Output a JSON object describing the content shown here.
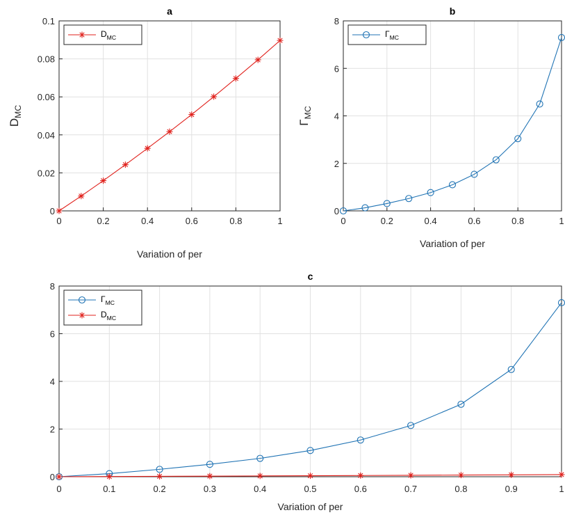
{
  "chart_data": [
    {
      "id": "a",
      "type": "line",
      "title": "a",
      "xlabel": "Variation of per",
      "ylabel": {
        "main": "D",
        "sub": "MC"
      },
      "xlim": [
        0,
        1
      ],
      "ylim": [
        0,
        0.1
      ],
      "xticks": [
        "0",
        "0.2",
        "0.4",
        "0.6",
        "0.8",
        "1"
      ],
      "xtick_values": [
        0,
        0.2,
        0.4,
        0.6,
        0.8,
        1
      ],
      "yticks": [
        "0",
        "0.02",
        "0.04",
        "0.06",
        "0.08",
        "0.1"
      ],
      "ytick_values": [
        0,
        0.02,
        0.04,
        0.06,
        0.08,
        0.1
      ],
      "grid": true,
      "legend": "top-left",
      "x": [
        0,
        0.1,
        0.2,
        0.3,
        0.4,
        0.5,
        0.6,
        0.7,
        0.8,
        0.9,
        1.0
      ],
      "series": [
        {
          "name": {
            "main": "D",
            "sub": "MC"
          },
          "color": "#e0211c",
          "marker": "asterisk",
          "values": [
            0,
            0.0078,
            0.0159,
            0.0243,
            0.0329,
            0.0417,
            0.0507,
            0.0601,
            0.0697,
            0.0795,
            0.0897
          ]
        }
      ]
    },
    {
      "id": "b",
      "type": "line",
      "title": "b",
      "xlabel": "Variation of per",
      "ylabel": {
        "main": "Γ",
        "sub": "MC"
      },
      "xlim": [
        0,
        1
      ],
      "ylim": [
        0,
        8
      ],
      "xticks": [
        "0",
        "0.2",
        "0.4",
        "0.6",
        "0.8",
        "1"
      ],
      "xtick_values": [
        0,
        0.2,
        0.4,
        0.6,
        0.8,
        1
      ],
      "yticks": [
        "0",
        "2",
        "4",
        "6",
        "8"
      ],
      "ytick_values": [
        0,
        2,
        4,
        6,
        8
      ],
      "grid": true,
      "legend": "top-left",
      "x": [
        0,
        0.1,
        0.2,
        0.3,
        0.4,
        0.5,
        0.6,
        0.7,
        0.8,
        0.9,
        1.0
      ],
      "series": [
        {
          "name": {
            "main": "Γ",
            "sub": "MC"
          },
          "color": "#1f73b4",
          "marker": "circle",
          "values": [
            0,
            0.13,
            0.31,
            0.52,
            0.77,
            1.1,
            1.54,
            2.15,
            3.04,
            4.5,
            7.3
          ]
        }
      ]
    },
    {
      "id": "c",
      "type": "line",
      "title": "c",
      "xlabel": "Variation of per",
      "xlim": [
        0,
        1
      ],
      "ylim": [
        0,
        8
      ],
      "xticks": [
        "0",
        "0.1",
        "0.2",
        "0.3",
        "0.4",
        "0.5",
        "0.6",
        "0.7",
        "0.8",
        "0.9",
        "1"
      ],
      "xtick_values": [
        0,
        0.1,
        0.2,
        0.3,
        0.4,
        0.5,
        0.6,
        0.7,
        0.8,
        0.9,
        1
      ],
      "yticks": [
        "0",
        "2",
        "4",
        "6",
        "8"
      ],
      "ytick_values": [
        0,
        2,
        4,
        6,
        8
      ],
      "grid": true,
      "legend": "top-left",
      "x": [
        0,
        0.1,
        0.2,
        0.3,
        0.4,
        0.5,
        0.6,
        0.7,
        0.8,
        0.9,
        1.0
      ],
      "series": [
        {
          "name": {
            "main": "Γ",
            "sub": "MC"
          },
          "color": "#1f73b4",
          "marker": "circle",
          "values": [
            0,
            0.13,
            0.31,
            0.52,
            0.77,
            1.1,
            1.54,
            2.15,
            3.04,
            4.5,
            7.3
          ]
        },
        {
          "name": {
            "main": "D",
            "sub": "MC"
          },
          "color": "#e0211c",
          "marker": "asterisk",
          "values": [
            0,
            0.0078,
            0.0159,
            0.0243,
            0.0329,
            0.0417,
            0.0507,
            0.0601,
            0.0697,
            0.0795,
            0.0897
          ]
        }
      ]
    }
  ]
}
